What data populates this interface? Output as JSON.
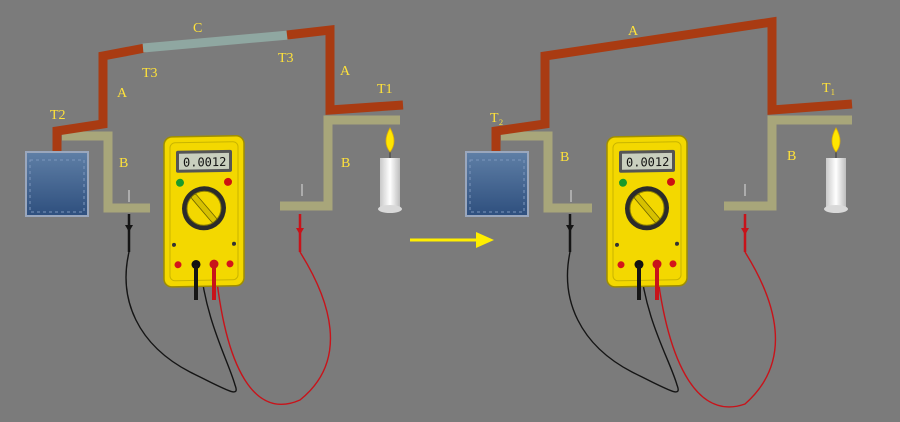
{
  "colors": {
    "background": "#7b7b7b",
    "wire_a": "#a93b12",
    "wire_b": "#a8a67a",
    "wire_c": "#8fa7a1",
    "label": "#ffe23a",
    "meter_body": "#f3d800",
    "probe_black": "#151515",
    "probe_red": "#c8131a",
    "ice_water": "#3b5f8e",
    "arrow": "#ffee00"
  },
  "left_setup": {
    "labels": {
      "wire_c": "C",
      "junction_left": "T3",
      "junction_right": "T3",
      "wire_a_left": "A",
      "wire_a_right": "A",
      "temp_cold": "T2",
      "temp_hot": "T1",
      "wire_b_left": "B",
      "wire_b_right": "B"
    },
    "meter_reading": "0.0012"
  },
  "right_setup": {
    "labels": {
      "wire_a": "A",
      "temp_cold": "T₂",
      "temp_hot": "T₁",
      "wire_b_left": "B",
      "wire_b_right": "B"
    },
    "meter_reading": "0.0012"
  },
  "icons": [
    "ice-water-beaker-icon",
    "candle-flame-icon",
    "multimeter-icon",
    "right-arrow-icon"
  ]
}
